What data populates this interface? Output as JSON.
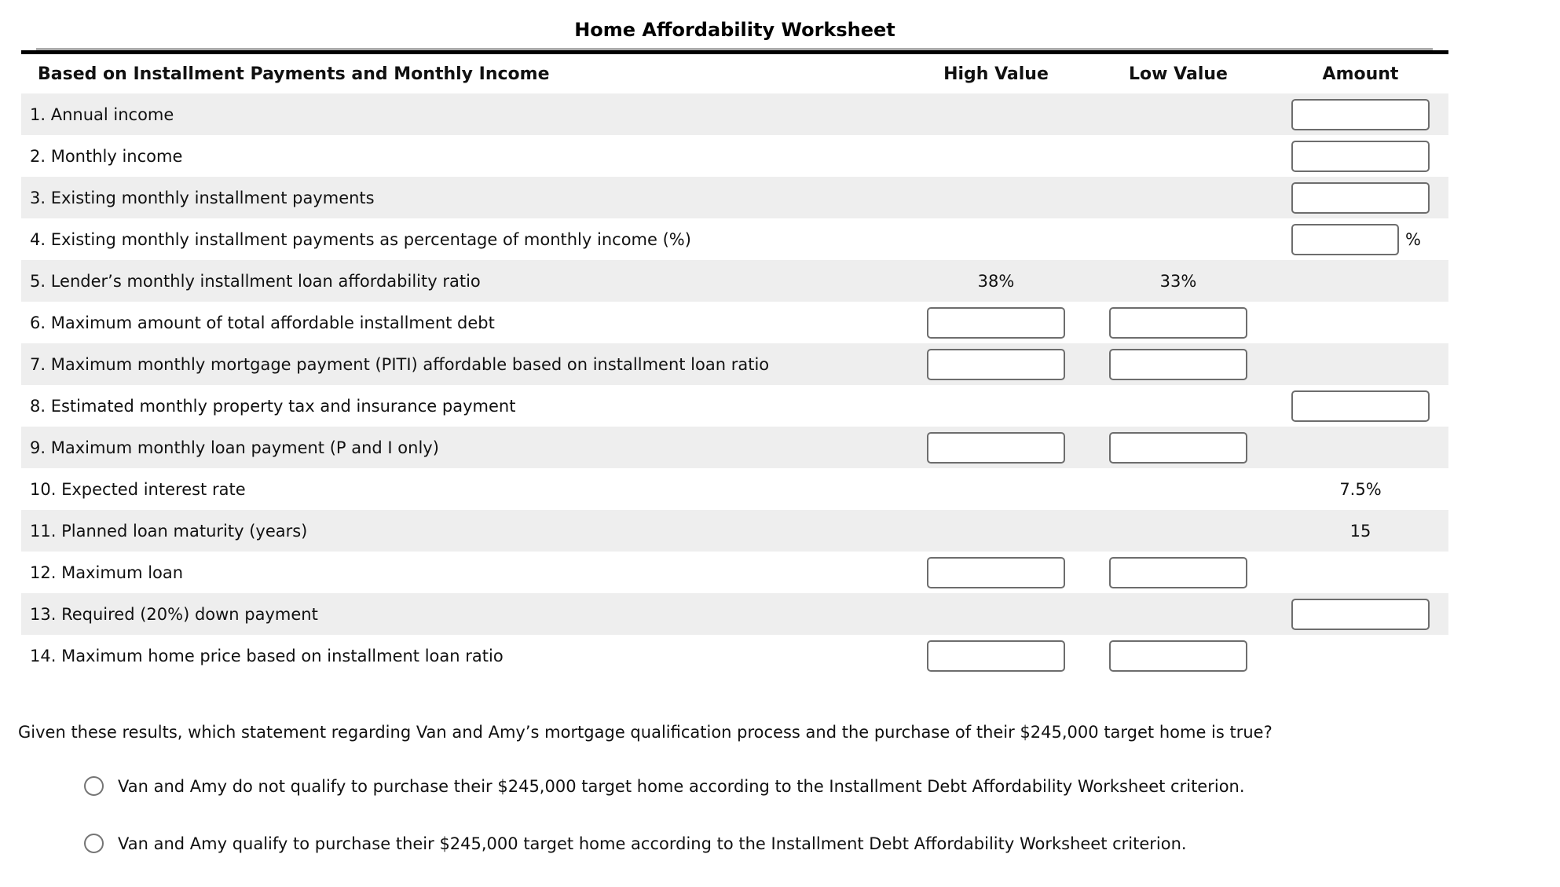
{
  "title": "Home Affordability Worksheet",
  "table": {
    "header": {
      "label": "Based on Installment Payments and Monthly Income",
      "high": "High Value",
      "low": "Low Value",
      "amount": "Amount"
    },
    "rows": [
      {
        "label": "1. Annual income",
        "high": null,
        "low": null,
        "amount": {
          "type": "input"
        }
      },
      {
        "label": "2. Monthly income",
        "high": null,
        "low": null,
        "amount": {
          "type": "input"
        }
      },
      {
        "label": "3. Existing monthly installment payments",
        "high": null,
        "low": null,
        "amount": {
          "type": "input"
        }
      },
      {
        "label": "4. Existing monthly installment payments as percentage of monthly income (%)",
        "high": null,
        "low": null,
        "amount": {
          "type": "input-suffix",
          "suffix": "%"
        }
      },
      {
        "label": "5. Lender’s monthly installment loan affordability ratio",
        "high": {
          "type": "text",
          "value": "38%"
        },
        "low": {
          "type": "text",
          "value": "33%"
        },
        "amount": null
      },
      {
        "label": "6. Maximum amount of total affordable installment debt",
        "high": {
          "type": "input"
        },
        "low": {
          "type": "input"
        },
        "amount": null
      },
      {
        "label": "7. Maximum monthly mortgage payment (PITI) affordable based on installment loan ratio",
        "high": {
          "type": "input"
        },
        "low": {
          "type": "input"
        },
        "amount": null
      },
      {
        "label": "8. Estimated monthly property tax and insurance payment",
        "high": null,
        "low": null,
        "amount": {
          "type": "input"
        }
      },
      {
        "label": "9. Maximum monthly loan payment (P and I only)",
        "high": {
          "type": "input"
        },
        "low": {
          "type": "input"
        },
        "amount": null
      },
      {
        "label": "10. Expected interest rate",
        "high": null,
        "low": null,
        "amount": {
          "type": "text",
          "value": "7.5%"
        }
      },
      {
        "label": "11. Planned loan maturity (years)",
        "high": null,
        "low": null,
        "amount": {
          "type": "text",
          "value": "15"
        }
      },
      {
        "label": "12. Maximum loan",
        "high": {
          "type": "input"
        },
        "low": {
          "type": "input"
        },
        "amount": null
      },
      {
        "label": "13. Required (20%) down payment",
        "high": null,
        "low": null,
        "amount": {
          "type": "input"
        }
      },
      {
        "label": "14. Maximum home price based on installment loan ratio",
        "high": {
          "type": "input"
        },
        "low": {
          "type": "input"
        },
        "amount": null
      }
    ],
    "inputs_value": "",
    "shade_color": "#eeeeee"
  },
  "question": "Given these results, which statement regarding Van and Amy’s mortgage qualification process and the purchase of their $245,000 target home is true?",
  "options": [
    {
      "label": "Van and Amy do not qualify to purchase their $245,000 target home according to the Installment Debt Affordability Worksheet criterion.",
      "selected": false
    },
    {
      "label": "Van and Amy qualify to purchase their $245,000 target home according to the Installment Debt Affordability Worksheet criterion.",
      "selected": false
    }
  ]
}
